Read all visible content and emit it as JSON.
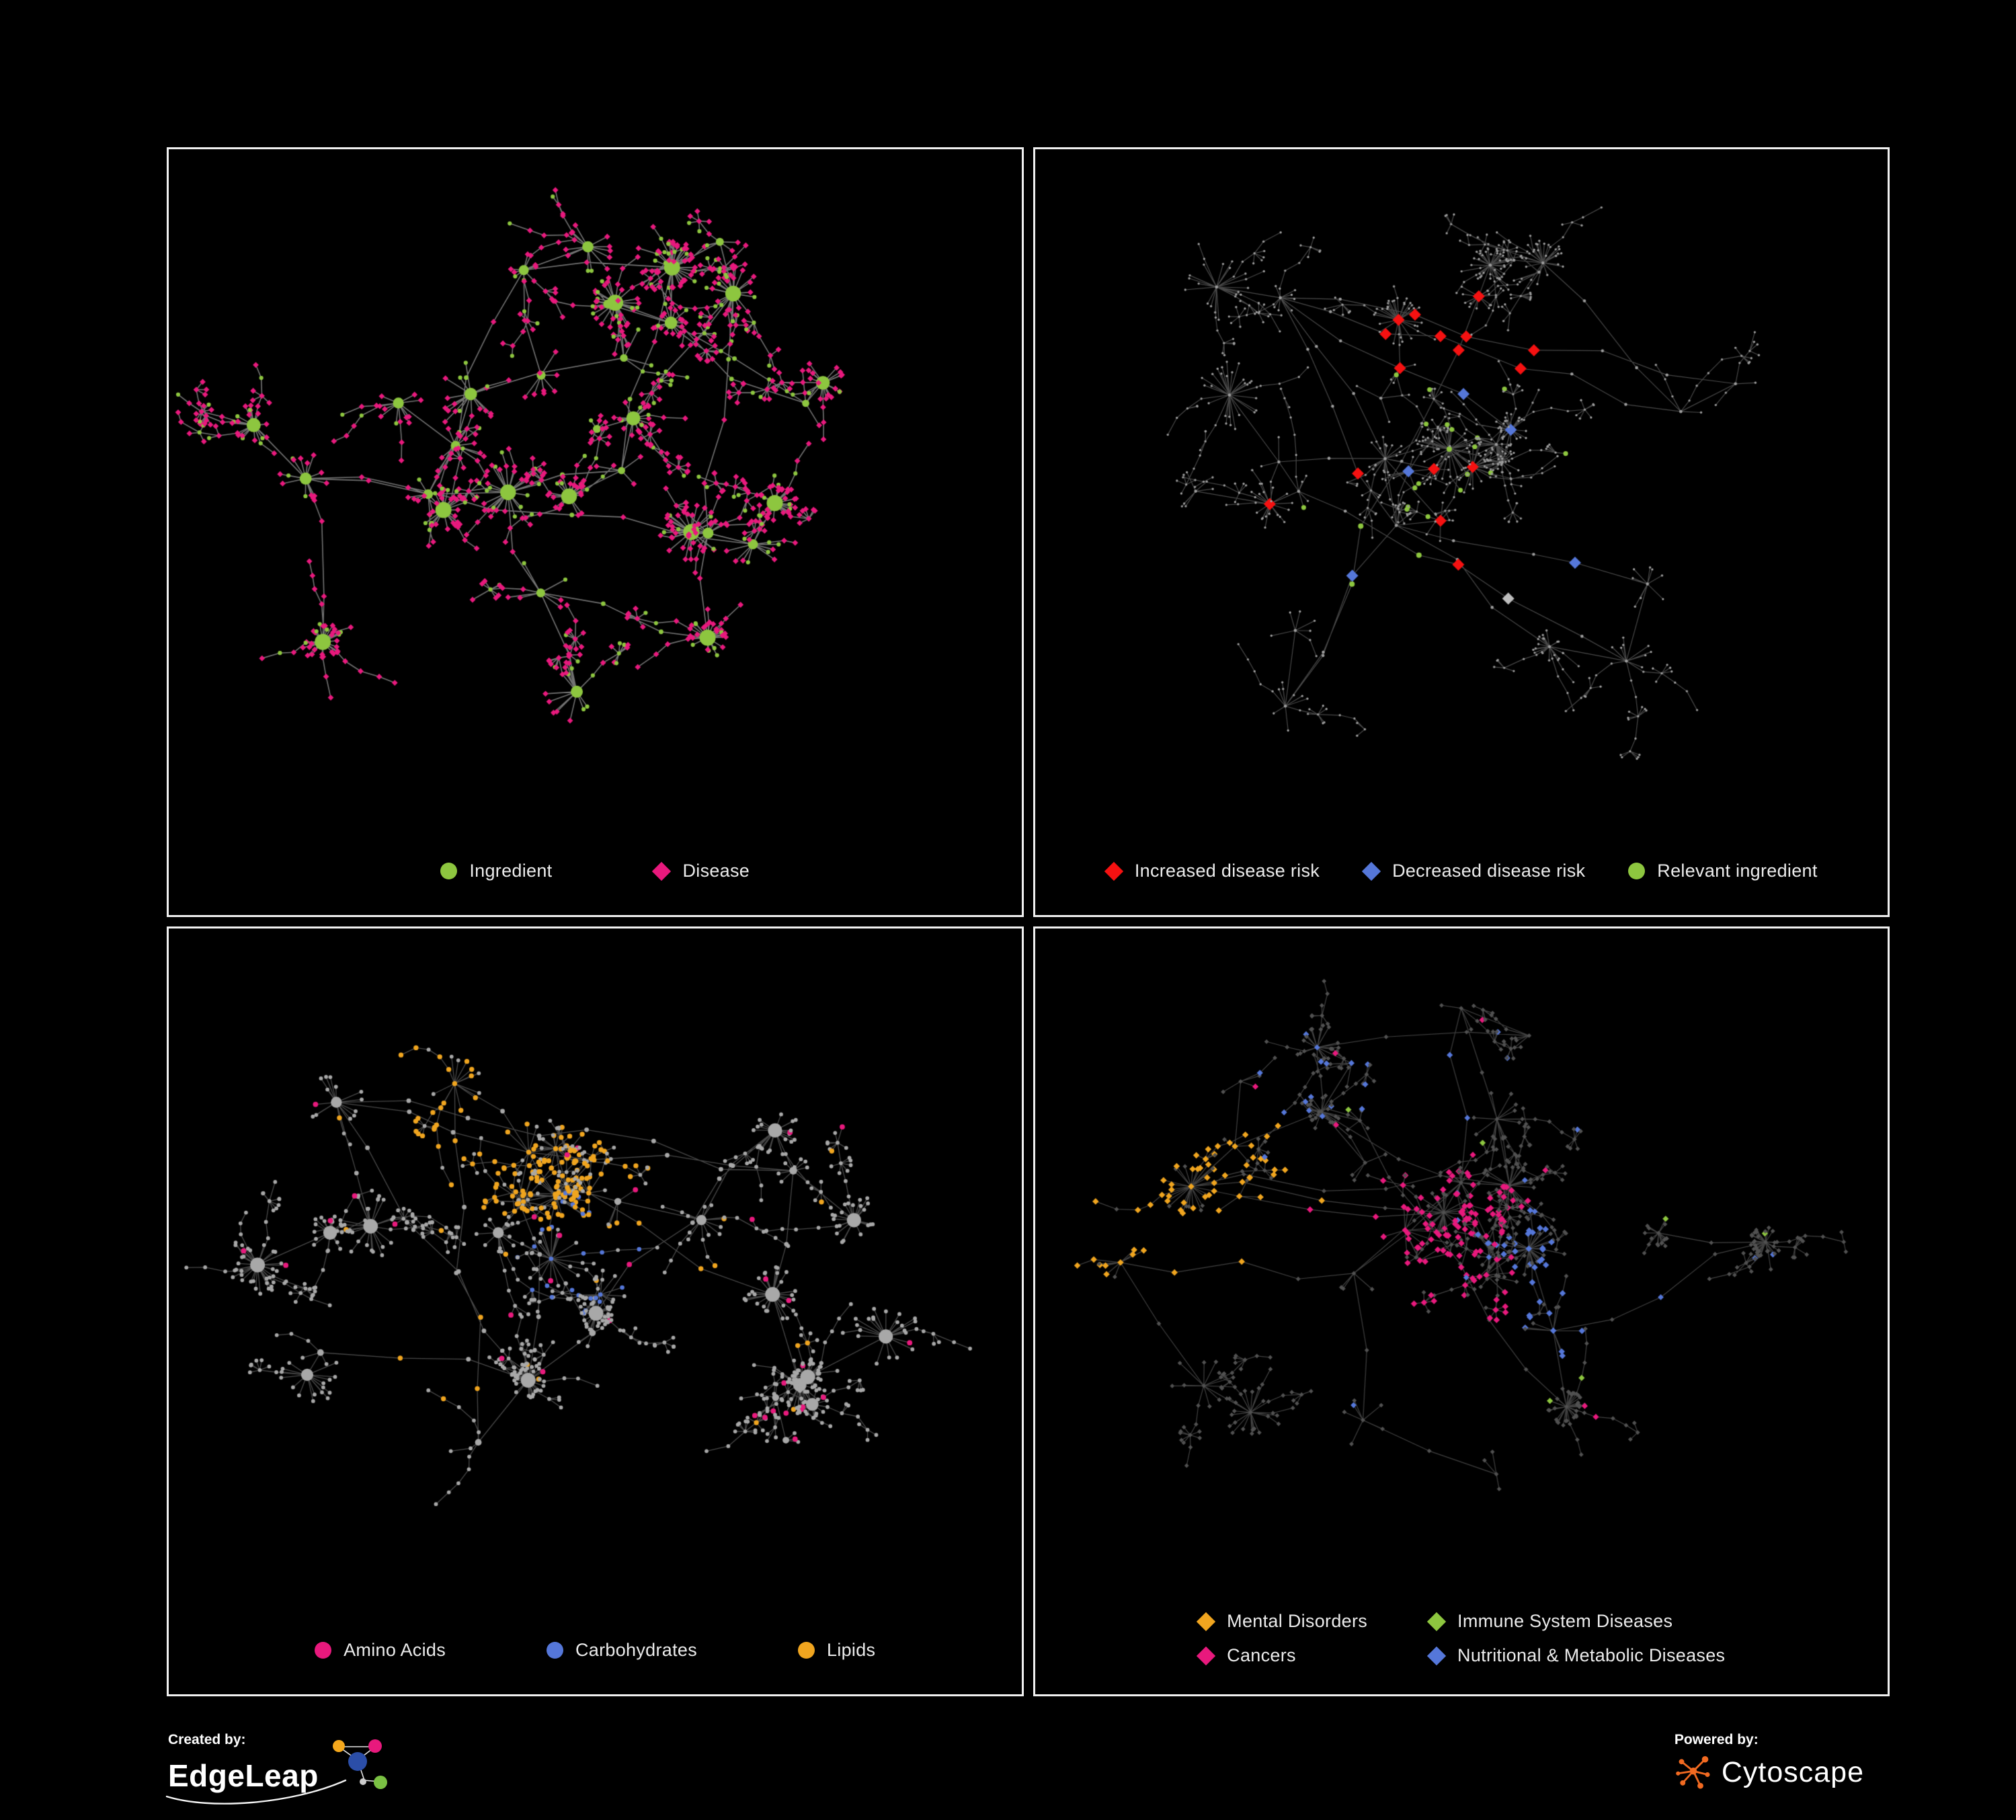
{
  "panels": [
    {
      "name": "ingredient-disease-network",
      "legend": [
        {
          "label": "Ingredient",
          "shape": "circle",
          "color": "#8dc63f"
        },
        {
          "label": "Disease",
          "shape": "diamond",
          "color": "#e8197d"
        }
      ]
    },
    {
      "name": "disease-risk-network",
      "legend": [
        {
          "label": "Increased disease risk",
          "shape": "diamond",
          "color": "#f51111"
        },
        {
          "label": "Decreased disease risk",
          "shape": "diamond",
          "color": "#5577d9"
        },
        {
          "label": "Relevant ingredient",
          "shape": "circle",
          "color": "#8dc63f"
        }
      ]
    },
    {
      "name": "nutrient-class-network",
      "legend": [
        {
          "label": "Amino Acids",
          "shape": "circle",
          "color": "#e8197d"
        },
        {
          "label": "Carbohydrates",
          "shape": "circle",
          "color": "#5577d9"
        },
        {
          "label": "Lipids",
          "shape": "circle",
          "color": "#f0a51f"
        }
      ]
    },
    {
      "name": "disease-category-network",
      "legend": [
        {
          "label": "Mental Disorders",
          "shape": "diamond",
          "color": "#f0a51f"
        },
        {
          "label": "Immune System Diseases",
          "shape": "diamond",
          "color": "#8dc63f"
        },
        {
          "label": "Cancers",
          "shape": "diamond",
          "color": "#e8197d"
        },
        {
          "label": "Nutritional & Metabolic Diseases",
          "shape": "diamond",
          "color": "#5577d9"
        }
      ]
    }
  ],
  "footer": {
    "created_by_label": "Created by:",
    "created_by_brand": "EdgeLeap",
    "created_by_icon": "edgeleap-network-logo",
    "powered_by_label": "Powered by:",
    "powered_by_brand": "Cytoscape",
    "powered_by_icon": "cytoscape-network-logo"
  },
  "style": {
    "background": "#000000",
    "panel_border": "#f0f0f0",
    "edge_color": "#909090",
    "base_grey": "#9c9c9c",
    "light_grey": "#a8a8a8",
    "dark_grey": "#515151",
    "silver": "#bdbdbd",
    "green": "#8dc63f",
    "pink": "#e8197d",
    "red": "#f51111",
    "blue": "#5577d9",
    "orange": "#f0a51f",
    "cytoscape_orange": "#f26a21"
  }
}
